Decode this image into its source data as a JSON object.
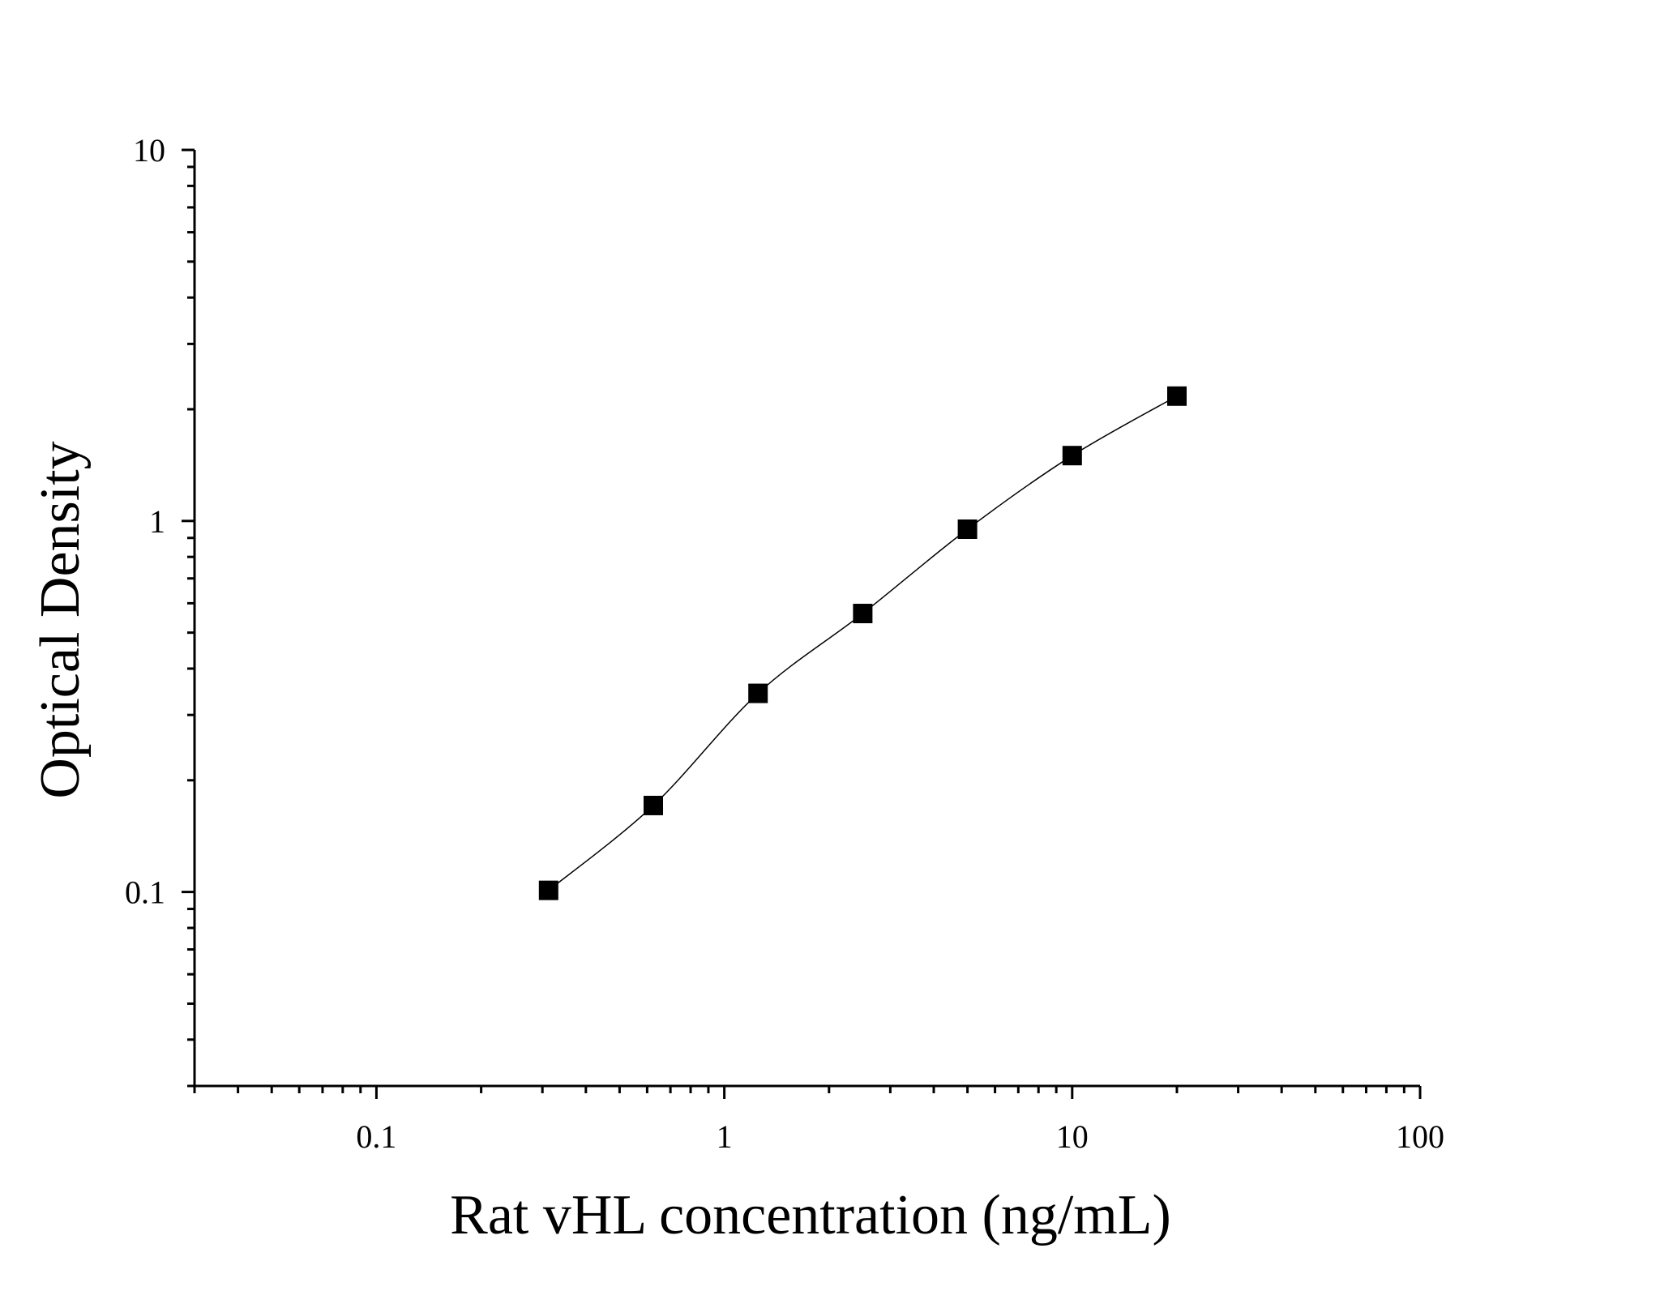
{
  "chart_data": {
    "type": "scatter",
    "xlabel": "Rat vHL concentration (ng/mL)",
    "ylabel": "Optical Density",
    "x_scale": "log",
    "y_scale": "log",
    "xlim": [
      0.03,
      100
    ],
    "ylim": [
      0.03,
      10
    ],
    "x_ticks": [
      "0.1",
      "1",
      "10",
      "100"
    ],
    "y_ticks": [
      "0.1",
      "1",
      "10"
    ],
    "grid": false,
    "marker": "square",
    "fit_line": true,
    "color": "#000000",
    "series": [
      {
        "x": [
          0.3125,
          0.625,
          1.25,
          2.5,
          5,
          10,
          20
        ],
        "y": [
          0.101,
          0.171,
          0.343,
          0.563,
          0.95,
          1.5,
          2.17
        ]
      }
    ]
  }
}
